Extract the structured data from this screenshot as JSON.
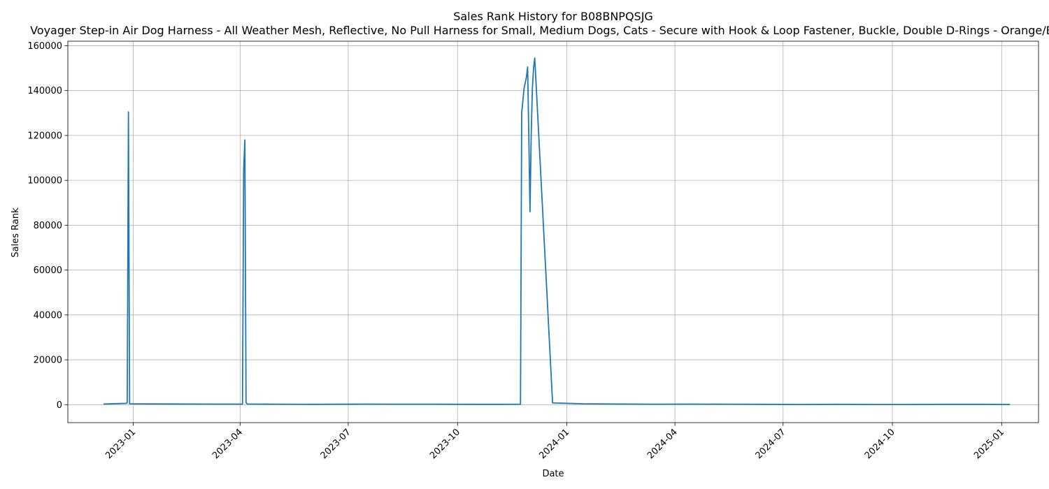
{
  "chart_data": {
    "type": "line",
    "title": "Sales Rank History for B08BNPQSJG",
    "subtitle": "Voyager Step-in Air Dog Harness - All Weather Mesh, Reflective, No Pull Harness for Small, Medium Dogs, Cats - Secure with Hook & Loop Fastener, Buckle, Double D-Rings - Orange/Black",
    "xlabel": "Date",
    "ylabel": "Sales Rank",
    "xlim": [
      "2022-11-07",
      "2025-02-01"
    ],
    "ylim": [
      -8000,
      162000
    ],
    "grid": true,
    "x_ticks": [
      {
        "date": "2023-01-01",
        "label": "2023-01"
      },
      {
        "date": "2023-04-01",
        "label": "2023-04"
      },
      {
        "date": "2023-07-01",
        "label": "2023-07"
      },
      {
        "date": "2023-10-01",
        "label": "2023-10"
      },
      {
        "date": "2024-01-01",
        "label": "2024-01"
      },
      {
        "date": "2024-04-01",
        "label": "2024-04"
      },
      {
        "date": "2024-07-01",
        "label": "2024-07"
      },
      {
        "date": "2024-10-01",
        "label": "2024-10"
      },
      {
        "date": "2025-01-01",
        "label": "2025-01"
      }
    ],
    "y_ticks": [
      0,
      20000,
      40000,
      60000,
      80000,
      100000,
      120000,
      140000,
      160000
    ],
    "series": [
      {
        "color": "#1f77b4",
        "x": [
          "2022-12-07",
          "2022-12-20",
          "2022-12-26",
          "2022-12-27",
          "2022-12-28",
          "2022-12-29",
          "2023-01-15",
          "2023-02-15",
          "2023-03-15",
          "2023-04-03",
          "2023-04-04",
          "2023-04-05",
          "2023-04-06",
          "2023-04-07",
          "2023-05-01",
          "2023-06-01",
          "2023-07-15",
          "2023-08-15",
          "2023-09-15",
          "2023-10-15",
          "2023-11-10",
          "2023-11-23",
          "2023-11-24",
          "2023-11-26",
          "2023-11-28",
          "2023-11-29",
          "2023-11-30",
          "2023-12-01",
          "2023-12-02",
          "2023-12-03",
          "2023-12-04",
          "2023-12-05",
          "2023-12-20",
          "2024-01-15",
          "2024-02-15",
          "2024-03-15",
          "2024-04-15",
          "2024-05-15",
          "2024-06-15",
          "2024-07-15",
          "2024-08-15",
          "2024-09-15",
          "2024-10-15",
          "2024-11-15",
          "2024-12-15",
          "2025-01-08"
        ],
        "y": [
          300,
          500,
          600,
          900,
          130500,
          400,
          350,
          300,
          250,
          250,
          105000,
          118000,
          900,
          300,
          200,
          150,
          250,
          200,
          200,
          150,
          150,
          200,
          130000,
          141000,
          146000,
          150500,
          120000,
          86000,
          120000,
          141000,
          150000,
          154500,
          800,
          400,
          300,
          200,
          250,
          200,
          150,
          100,
          150,
          100,
          100,
          150,
          150,
          100
        ]
      }
    ]
  }
}
